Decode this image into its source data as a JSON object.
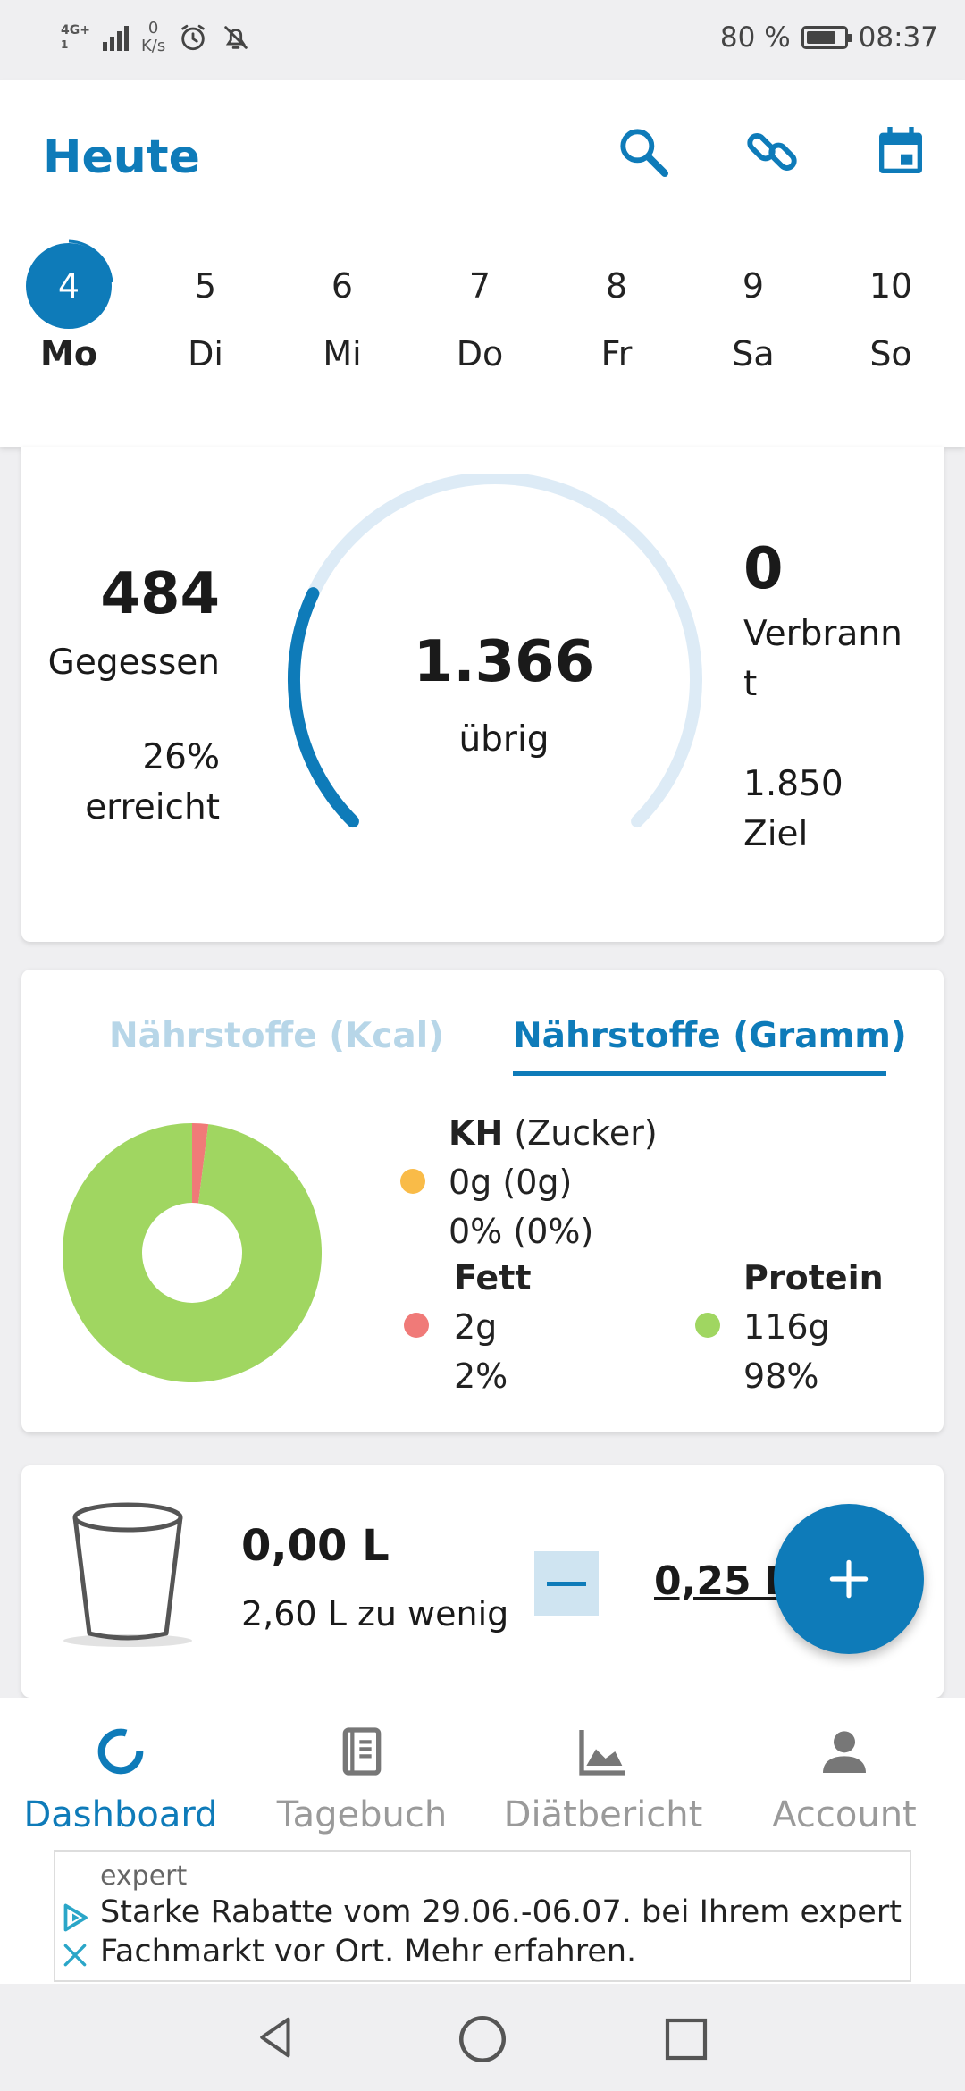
{
  "status_bar": {
    "network": "4G+",
    "network_sub": "1",
    "speed_value": "0",
    "speed_unit": "K/s",
    "battery": "80 %",
    "time": "08:37",
    "battery_level": 0.8
  },
  "header": {
    "title": "Heute"
  },
  "week": [
    {
      "num": "4",
      "day": "Mo",
      "active": true
    },
    {
      "num": "5",
      "day": "Di"
    },
    {
      "num": "6",
      "day": "Mi"
    },
    {
      "num": "7",
      "day": "Do"
    },
    {
      "num": "8",
      "day": "Fr"
    },
    {
      "num": "9",
      "day": "Sa"
    },
    {
      "num": "10",
      "day": "So"
    }
  ],
  "calories": {
    "eaten_value": "484",
    "eaten_label": "Gegessen",
    "percent": "26%",
    "percent_label": "erreicht",
    "remaining_value": "1.366",
    "remaining_label": "übrig",
    "burned_value": "0",
    "burned_label_1": "Verbrann",
    "burned_label_2": "t",
    "goal_value": "1.850",
    "goal_label": "Ziel",
    "progress_fraction": 0.26
  },
  "nutrients": {
    "tab_kcal": "Nährstoffe (Kcal)",
    "tab_gramm": "Nährstoffe (Gramm)",
    "carbs_title": "KH",
    "carbs_title_sub": "(Zucker)",
    "carbs_grams": "0g (0g)",
    "carbs_percent": "0% (0%)",
    "fat_title": "Fett",
    "fat_grams": "2g",
    "fat_percent": "2%",
    "protein_title": "Protein",
    "protein_grams": "116g",
    "protein_percent": "98%",
    "colors": {
      "carbs": "#f9bb48",
      "fat": "#f07a78",
      "protein": "#a0d661"
    },
    "donut_fractions": {
      "fat": 0.02,
      "protein": 0.98
    }
  },
  "water": {
    "amount": "0,00 L",
    "deficit": "2,60 L zu wenig",
    "step": "0,25 L"
  },
  "bottom_nav": [
    {
      "label": "Dashboard",
      "active": true
    },
    {
      "label": "Tagebuch"
    },
    {
      "label": "Diätbericht"
    },
    {
      "label": "Account"
    }
  ],
  "ad": {
    "brand": "expert",
    "text_line_1": "Starke Rabatte vom 29.06.-06.07. bei Ihrem expert",
    "text_line_2": "Fachmarkt vor Ort. Mehr erfahren."
  },
  "accent_color": "#0e7bb9"
}
